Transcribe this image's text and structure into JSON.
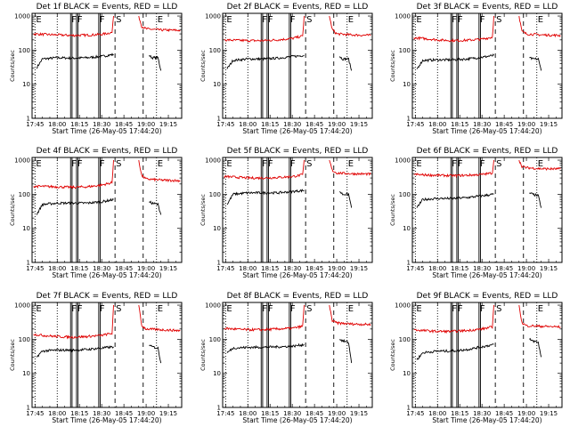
{
  "figure": {
    "y_axis_label": "Counts/sec",
    "x_axis_label": "Start Time (26-May-05 17:44:20)",
    "x_tick_labels": [
      "17:45",
      "18:00",
      "18:15",
      "18:30",
      "18:45",
      "19:00",
      "19:15"
    ],
    "y_tick_labels": [
      "1",
      "10",
      "100",
      "1000"
    ],
    "colors": {
      "events": "#000000",
      "lld": "#e00000"
    }
  },
  "chart_data": {
    "type": "line",
    "xlabel": "Start Time (26-May-05 17:44:20)",
    "ylabel": "Counts/sec",
    "x_units": "clock time HH:MM on 26-May-05",
    "xlim": [
      "17:43",
      "19:24"
    ],
    "ylim": [
      1,
      1200
    ],
    "yscale": "log",
    "x_ticks": [
      "17:45",
      "18:00",
      "18:15",
      "18:30",
      "18:45",
      "19:00",
      "19:15"
    ],
    "y_ticks": [
      1,
      10,
      100,
      1000
    ],
    "markers": [
      {
        "label": "E",
        "time": "17:45",
        "style": "dotted"
      },
      {
        "label": "F",
        "time": "18:09",
        "style": "solid"
      },
      {
        "label": "F",
        "time": "18:13",
        "style": "solid"
      },
      {
        "label": "F",
        "time": "18:28",
        "style": "solid"
      },
      {
        "label": "S",
        "time": "18:39",
        "style": "dashed"
      },
      {
        "label": "E",
        "time": "19:07",
        "style": "dotted"
      }
    ],
    "extra_lines": [
      {
        "time": "18:00",
        "style": "dotted"
      },
      {
        "time": "18:10",
        "style": "solid"
      },
      {
        "time": "18:14",
        "style": "solid"
      },
      {
        "time": "18:29",
        "style": "solid"
      },
      {
        "time": "18:58",
        "style": "dashed"
      }
    ],
    "panels": [
      {
        "title": "Det 1f BLACK = Events, RED = LLD",
        "series": [
          {
            "name": "Events",
            "color": "#000000",
            "segments": [
              {
                "x": [
                  "17:46",
                  "17:50",
                  "18:00",
                  "18:10",
                  "18:20",
                  "18:30",
                  "18:38"
                ],
                "y": [
                  30,
                  55,
                  60,
                  58,
                  60,
                  65,
                  75
                ]
              },
              {
                "x": [
                  "19:02",
                  "19:04",
                  "19:08",
                  "19:10"
                ],
                "y": [
                  70,
                  60,
                  60,
                  25
                ]
              }
            ]
          },
          {
            "name": "LLD",
            "color": "#e00000",
            "segments": [
              {
                "x": [
                  "17:44",
                  "17:50",
                  "18:00",
                  "18:10",
                  "18:20",
                  "18:30",
                  "18:37",
                  "18:38"
                ],
                "y": [
                  300,
                  290,
                  280,
                  270,
                  275,
                  290,
                  330,
                  1000
                ]
              },
              {
                "x": [
                  "18:55",
                  "18:57",
                  "19:00",
                  "19:10",
                  "19:23"
                ],
                "y": [
                  1000,
                  500,
                  420,
                  390,
                  380
                ]
              }
            ]
          }
        ]
      },
      {
        "title": "Det 2f BLACK = Events, RED = LLD",
        "series": [
          {
            "name": "Events",
            "color": "#000000",
            "segments": [
              {
                "x": [
                  "17:46",
                  "17:50",
                  "18:00",
                  "18:10",
                  "18:20",
                  "18:30",
                  "18:38"
                ],
                "y": [
                  28,
                  50,
                  55,
                  55,
                  58,
                  65,
                  70
                ]
              },
              {
                "x": [
                  "19:02",
                  "19:04",
                  "19:08",
                  "19:10"
                ],
                "y": [
                  65,
                  55,
                  55,
                  25
                ]
              }
            ]
          },
          {
            "name": "LLD",
            "color": "#e00000",
            "segments": [
              {
                "x": [
                  "17:44",
                  "17:50",
                  "18:00",
                  "18:10",
                  "18:20",
                  "18:30",
                  "18:37",
                  "18:38"
                ],
                "y": [
                  200,
                  195,
                  190,
                  190,
                  200,
                  220,
                  260,
                  1000
                ]
              },
              {
                "x": [
                  "18:55",
                  "18:57",
                  "19:00",
                  "19:10",
                  "19:23"
                ],
                "y": [
                  1000,
                  400,
                  300,
                  280,
                  270
                ]
              }
            ]
          }
        ]
      },
      {
        "title": "Det 3f BLACK = Events, RED = LLD",
        "series": [
          {
            "name": "Events",
            "color": "#000000",
            "segments": [
              {
                "x": [
                  "17:46",
                  "17:50",
                  "18:00",
                  "18:10",
                  "18:20",
                  "18:30",
                  "18:38"
                ],
                "y": [
                  28,
                  50,
                  52,
                  52,
                  55,
                  62,
                  70
                ]
              },
              {
                "x": [
                  "19:02",
                  "19:04",
                  "19:08",
                  "19:10"
                ],
                "y": [
                  60,
                  55,
                  55,
                  25
                ]
              }
            ]
          },
          {
            "name": "LLD",
            "color": "#e00000",
            "segments": [
              {
                "x": [
                  "17:44",
                  "17:50",
                  "18:00",
                  "18:10",
                  "18:20",
                  "18:30",
                  "18:37",
                  "18:38"
                ],
                "y": [
                  230,
                  220,
                  200,
                  190,
                  195,
                  210,
                  240,
                  1000
                ]
              },
              {
                "x": [
                  "18:55",
                  "18:57",
                  "19:00",
                  "19:10",
                  "19:23"
                ],
                "y": [
                  1000,
                  350,
                  300,
                  280,
                  270
                ]
              }
            ]
          }
        ]
      },
      {
        "title": "Det 4f BLACK = Events, RED = LLD",
        "series": [
          {
            "name": "Events",
            "color": "#000000",
            "segments": [
              {
                "x": [
                  "17:46",
                  "17:50",
                  "18:00",
                  "18:10",
                  "18:20",
                  "18:30",
                  "18:38"
                ],
                "y": [
                  25,
                  50,
                  55,
                  55,
                  55,
                  60,
                  70
                ]
              },
              {
                "x": [
                  "19:02",
                  "19:04",
                  "19:08",
                  "19:10"
                ],
                "y": [
                  60,
                  55,
                  50,
                  25
                ]
              }
            ]
          },
          {
            "name": "LLD",
            "color": "#e00000",
            "segments": [
              {
                "x": [
                  "17:44",
                  "17:50",
                  "18:00",
                  "18:10",
                  "18:20",
                  "18:30",
                  "18:37",
                  "18:38"
                ],
                "y": [
                  170,
                  170,
                  165,
                  160,
                  165,
                  185,
                  220,
                  1000
                ]
              },
              {
                "x": [
                  "18:55",
                  "18:57",
                  "19:00",
                  "19:10",
                  "19:23"
                ],
                "y": [
                  1000,
                  350,
                  280,
                  260,
                  250
                ]
              }
            ]
          }
        ]
      },
      {
        "title": "Det 5f BLACK = Events, RED = LLD",
        "series": [
          {
            "name": "Events",
            "color": "#000000",
            "segments": [
              {
                "x": [
                  "17:46",
                  "17:50",
                  "18:00",
                  "18:10",
                  "18:20",
                  "18:30",
                  "18:38"
                ],
                "y": [
                  50,
                  100,
                  110,
                  110,
                  110,
                  120,
                  130
                ]
              },
              {
                "x": [
                  "19:02",
                  "19:04",
                  "19:08",
                  "19:10"
                ],
                "y": [
                  120,
                  100,
                  100,
                  40
                ]
              }
            ]
          },
          {
            "name": "LLD",
            "color": "#e00000",
            "segments": [
              {
                "x": [
                  "17:44",
                  "17:50",
                  "18:00",
                  "18:10",
                  "18:20",
                  "18:30",
                  "18:37",
                  "18:38"
                ],
                "y": [
                  330,
                  320,
                  300,
                  300,
                  310,
                  330,
                  370,
                  1000
                ]
              },
              {
                "x": [
                  "18:55",
                  "18:57",
                  "19:00",
                  "19:10",
                  "19:23"
                ],
                "y": [
                  1000,
                  500,
                  420,
                  400,
                  390
                ]
              }
            ]
          }
        ]
      },
      {
        "title": "Det 6f BLACK = Events, RED = LLD",
        "series": [
          {
            "name": "Events",
            "color": "#000000",
            "segments": [
              {
                "x": [
                  "17:46",
                  "17:50",
                  "18:00",
                  "18:10",
                  "18:20",
                  "18:30",
                  "18:38"
                ],
                "y": [
                  40,
                  70,
                  75,
                  75,
                  80,
                  90,
                  100
                ]
              },
              {
                "x": [
                  "19:02",
                  "19:04",
                  "19:08",
                  "19:10"
                ],
                "y": [
                  110,
                  100,
                  90,
                  40
                ]
              }
            ]
          },
          {
            "name": "LLD",
            "color": "#e00000",
            "segments": [
              {
                "x": [
                  "17:44",
                  "17:50",
                  "18:00",
                  "18:10",
                  "18:20",
                  "18:30",
                  "18:37",
                  "18:38"
                ],
                "y": [
                  380,
                  370,
                  360,
                  350,
                  360,
                  380,
                  420,
                  1000
                ]
              },
              {
                "x": [
                  "18:55",
                  "18:57",
                  "19:00",
                  "19:10",
                  "19:23"
                ],
                "y": [
                  1000,
                  650,
                  600,
                  560,
                  550
                ]
              }
            ]
          }
        ]
      },
      {
        "title": "Det 7f BLACK = Events, RED = LLD",
        "series": [
          {
            "name": "Events",
            "color": "#000000",
            "segments": [
              {
                "x": [
                  "17:46",
                  "17:50",
                  "18:00",
                  "18:10",
                  "18:20",
                  "18:30",
                  "18:38"
                ],
                "y": [
                  30,
                  45,
                  48,
                  48,
                  50,
                  55,
                  60
                ]
              },
              {
                "x": [
                  "19:02",
                  "19:04",
                  "19:08",
                  "19:10"
                ],
                "y": [
                  65,
                  60,
                  55,
                  20
                ]
              }
            ]
          },
          {
            "name": "LLD",
            "color": "#e00000",
            "segments": [
              {
                "x": [
                  "17:44",
                  "17:50",
                  "18:00",
                  "18:10",
                  "18:20",
                  "18:30",
                  "18:37",
                  "18:38"
                ],
                "y": [
                  140,
                  130,
                  120,
                  115,
                  120,
                  130,
                  150,
                  1000
                ]
              },
              {
                "x": [
                  "18:55",
                  "18:57",
                  "19:00",
                  "19:10",
                  "19:23"
                ],
                "y": [
                  1000,
                  250,
                  200,
                  190,
                  180
                ]
              }
            ]
          }
        ]
      },
      {
        "title": "Det 8f BLACK = Events, RED = LLD",
        "series": [
          {
            "name": "Events",
            "color": "#000000",
            "segments": [
              {
                "x": [
                  "17:46",
                  "17:50",
                  "18:00",
                  "18:10",
                  "18:20",
                  "18:30",
                  "18:38"
                ],
                "y": [
                  40,
                  55,
                  58,
                  58,
                  60,
                  62,
                  70
                ]
              },
              {
                "x": [
                  "19:02",
                  "19:04",
                  "19:08",
                  "19:10"
                ],
                "y": [
                  100,
                  90,
                  80,
                  20
                ]
              }
            ]
          },
          {
            "name": "LLD",
            "color": "#e00000",
            "segments": [
              {
                "x": [
                  "17:44",
                  "17:50",
                  "18:00",
                  "18:10",
                  "18:20",
                  "18:30",
                  "18:37",
                  "18:38"
                ],
                "y": [
                  210,
                  200,
                  190,
                  190,
                  200,
                  210,
                  240,
                  1000
                ]
              },
              {
                "x": [
                  "18:55",
                  "18:57",
                  "19:00",
                  "19:10",
                  "19:23"
                ],
                "y": [
                  1000,
                  350,
                  300,
                  280,
                  270
                ]
              }
            ]
          }
        ]
      },
      {
        "title": "Det 9f BLACK = Events, RED = LLD",
        "series": [
          {
            "name": "Events",
            "color": "#000000",
            "segments": [
              {
                "x": [
                  "17:46",
                  "17:50",
                  "18:00",
                  "18:10",
                  "18:20",
                  "18:30",
                  "18:38"
                ],
                "y": [
                  25,
                  40,
                  45,
                  45,
                  50,
                  60,
                  70
                ]
              },
              {
                "x": [
                  "19:02",
                  "19:04",
                  "19:08",
                  "19:10"
                ],
                "y": [
                  100,
                  90,
                  80,
                  30
                ]
              }
            ]
          },
          {
            "name": "LLD",
            "color": "#e00000",
            "segments": [
              {
                "x": [
                  "17:44",
                  "17:50",
                  "18:00",
                  "18:10",
                  "18:20",
                  "18:30",
                  "18:37",
                  "18:38"
                ],
                "y": [
                  190,
                  180,
                  170,
                  170,
                  180,
                  200,
                  230,
                  1000
                ]
              },
              {
                "x": [
                  "18:55",
                  "18:57",
                  "19:00",
                  "19:10",
                  "19:23"
                ],
                "y": [
                  1000,
                  300,
                  250,
                  240,
                  230
                ]
              }
            ]
          }
        ]
      }
    ]
  }
}
